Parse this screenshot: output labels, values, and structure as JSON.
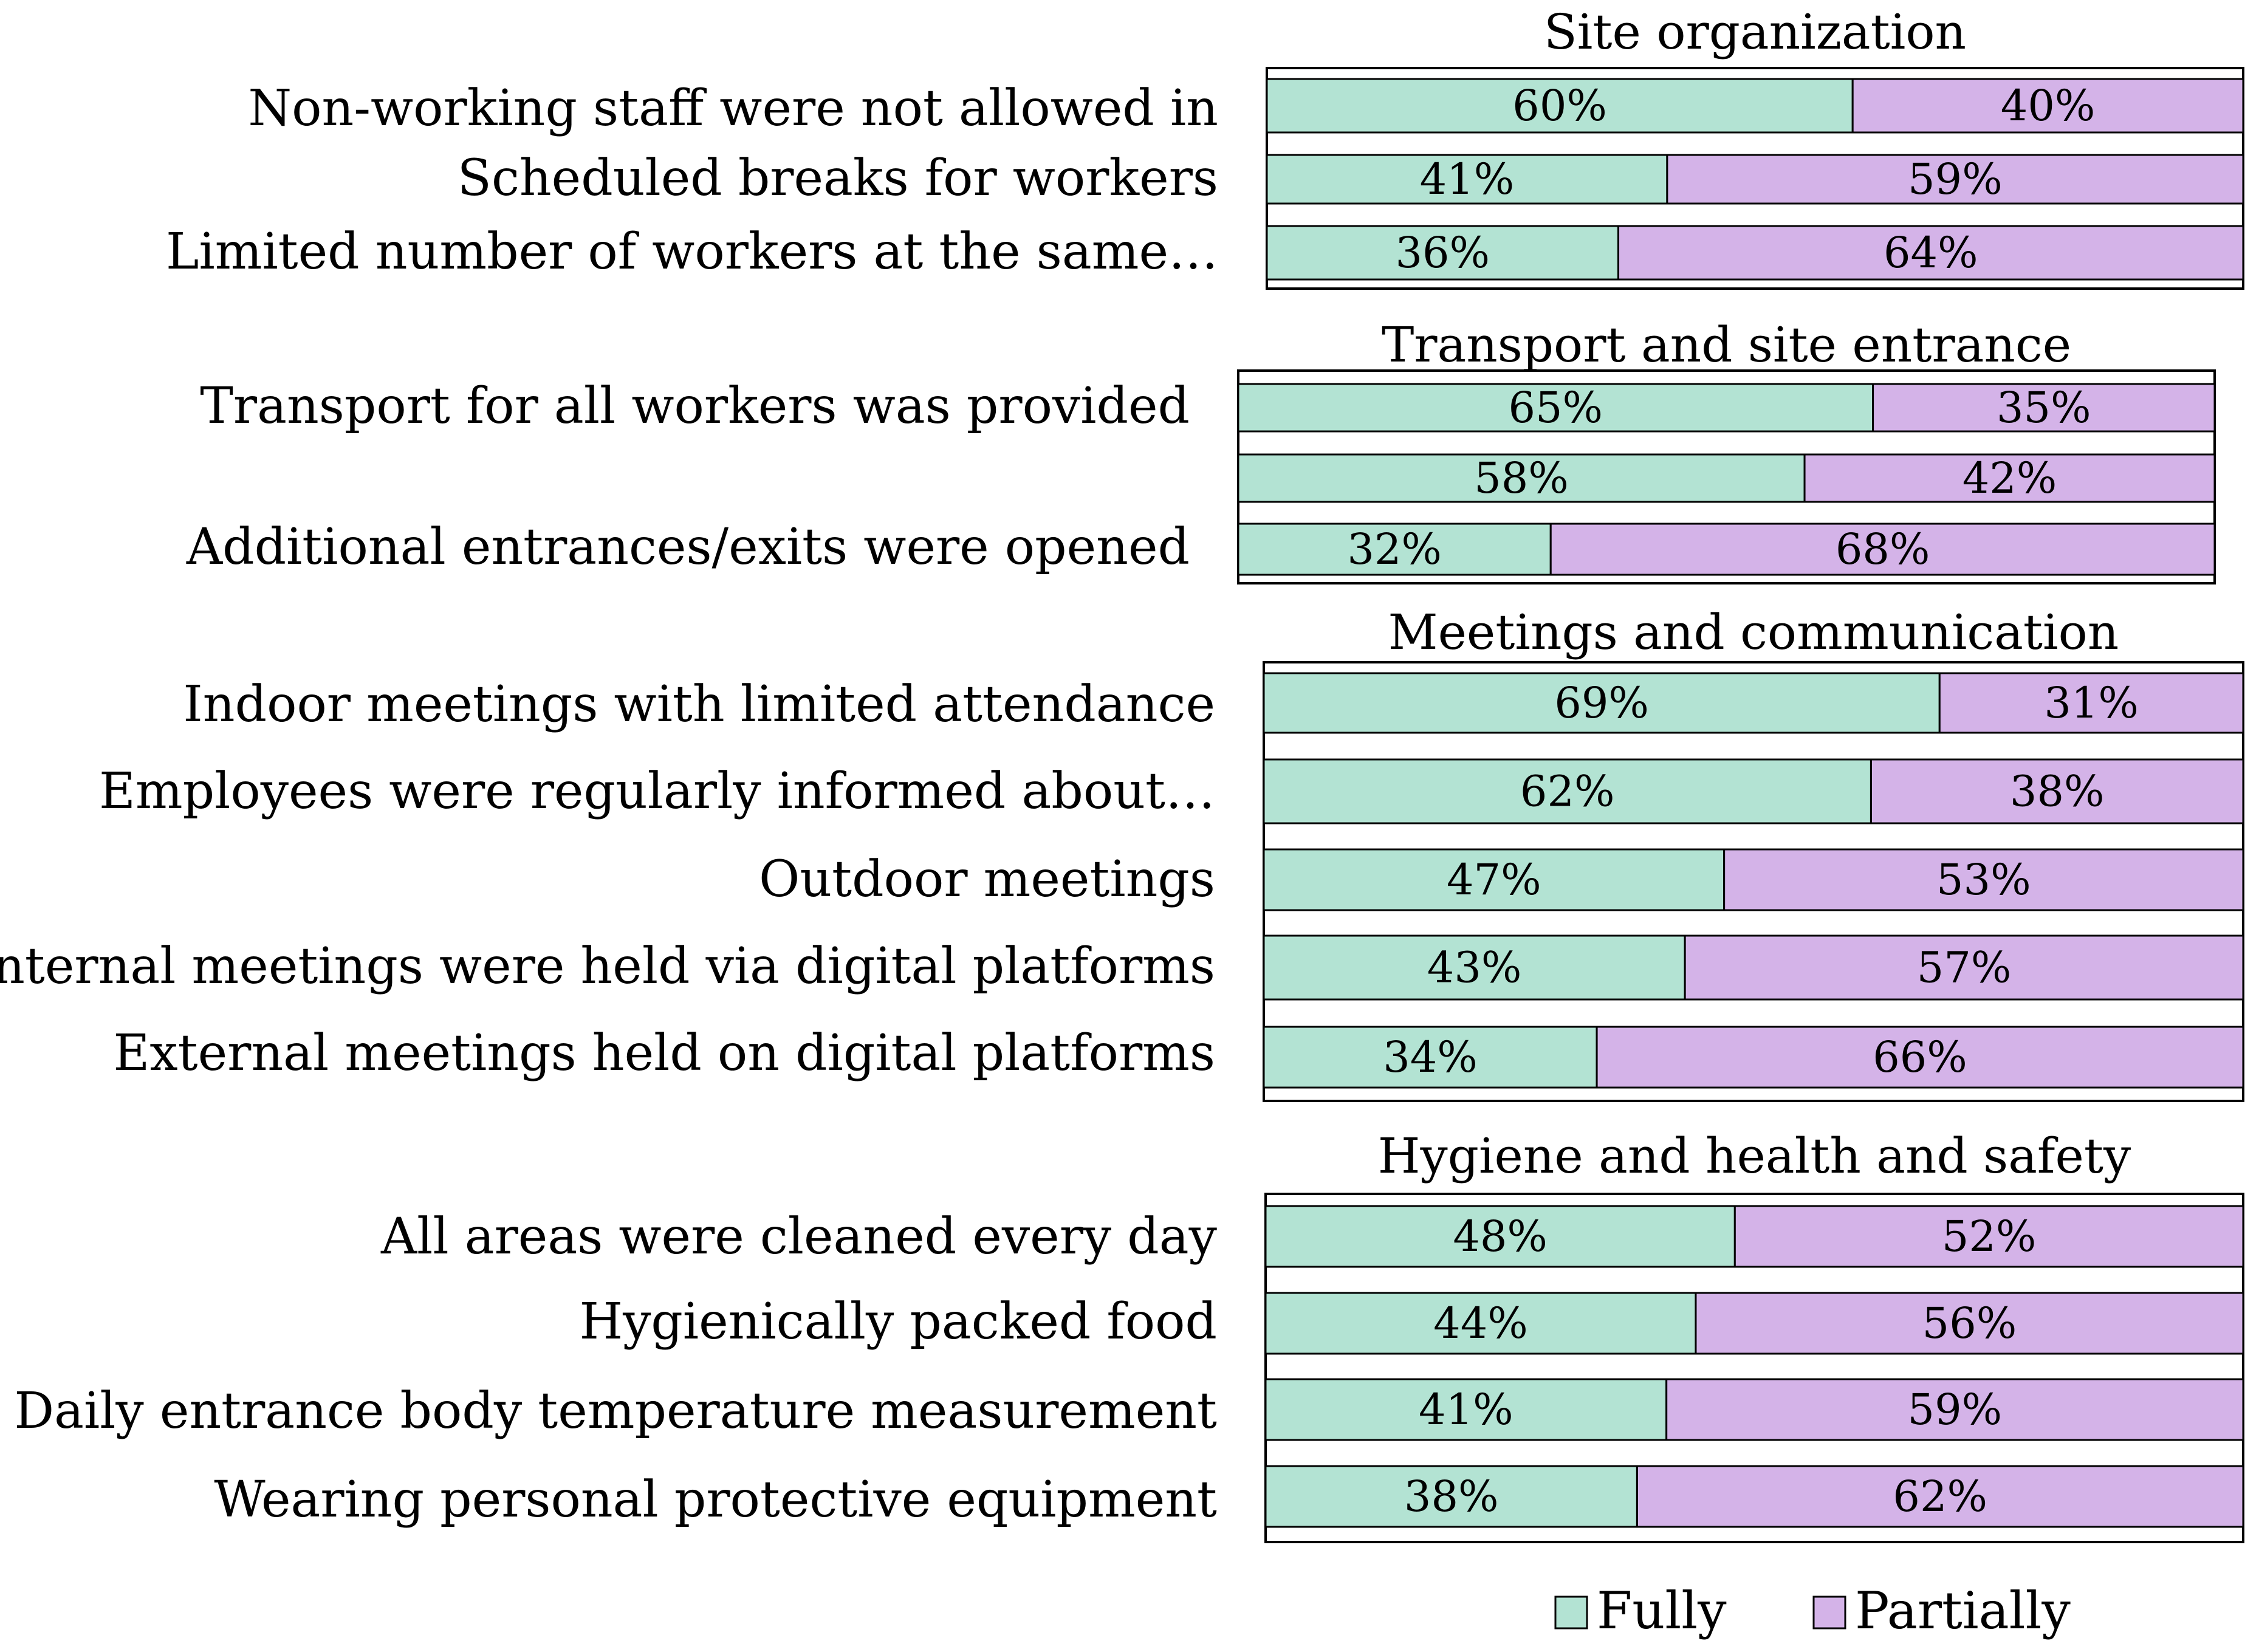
{
  "chart_data": {
    "type": "bar",
    "stacked": true,
    "orientation": "horizontal",
    "unit": "%",
    "legend": {
      "position": "bottom-right",
      "entries": [
        {
          "key": "fully",
          "label": "Fully",
          "color": "#b3e3d3"
        },
        {
          "key": "partially",
          "label": "Partially",
          "color": "#d4b3e8"
        }
      ]
    },
    "panels": [
      {
        "title": "Site organization",
        "rows": [
          {
            "label": "Non-working staff were not allowed in",
            "fully": 60,
            "partially": 40
          },
          {
            "label": "Scheduled breaks for workers",
            "fully": 41,
            "partially": 59
          },
          {
            "label": "Limited number of workers at the same…",
            "fully": 36,
            "partially": 64
          }
        ]
      },
      {
        "title": "Transport and site entrance",
        "rows": [
          {
            "label": "Transport for all workers was provided",
            "fully": 65,
            "partially": 35
          },
          {
            "label": "",
            "fully": 58,
            "partially": 42
          },
          {
            "label": "Additional entrances/exits were opened",
            "fully": 32,
            "partially": 68
          }
        ]
      },
      {
        "title": "Meetings and communication",
        "rows": [
          {
            "label": "Indoor meetings with limited attendance",
            "fully": 69,
            "partially": 31
          },
          {
            "label": "Employees were regularly informed about…",
            "fully": 62,
            "partially": 38
          },
          {
            "label": "Outdoor meetings",
            "fully": 47,
            "partially": 53
          },
          {
            "label": "Internal meetings were held via digital platforms",
            "fully": 43,
            "partially": 57
          },
          {
            "label": "External meetings held on digital platforms",
            "fully": 34,
            "partially": 66
          }
        ]
      },
      {
        "title": "Hygiene and health and safety",
        "rows": [
          {
            "label": "All areas were cleaned every day",
            "fully": 48,
            "partially": 52
          },
          {
            "label": "Hygienically packed food",
            "fully": 44,
            "partially": 56
          },
          {
            "label": "Daily entrance body temperature measurement",
            "fully": 41,
            "partially": 59
          },
          {
            "label": "Wearing personal protective equipment",
            "fully": 38,
            "partially": 62
          }
        ]
      }
    ]
  }
}
